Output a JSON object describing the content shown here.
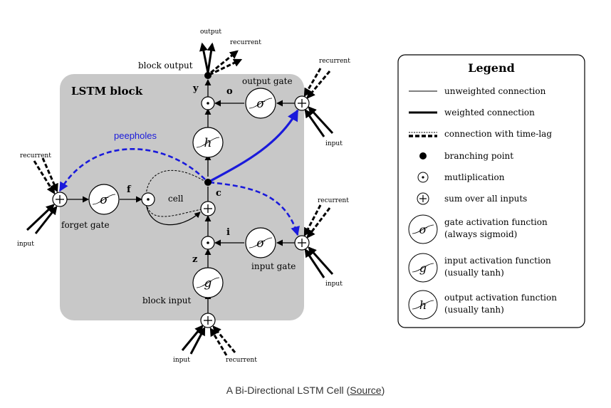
{
  "diagram": {
    "block_title": "LSTM block",
    "labels": {
      "block_output": "block output",
      "output_top": "output",
      "recurrent_top": "recurrent",
      "recurrent_output_gate": "recurrent",
      "input_output_gate": "input",
      "output_gate": "output gate",
      "y": "y",
      "o": "o",
      "peepholes": "peepholes",
      "recurrent_forget": "recurrent",
      "input_forget": "input",
      "f": "f",
      "cell": "cell",
      "c": "c",
      "forget_gate": "forget gate",
      "recurrent_input_gate": "recurrent",
      "input_input_gate": "input",
      "i": "i",
      "z": "z",
      "input_gate": "input gate",
      "block_input": "block input",
      "input_bottom": "input",
      "recurrent_bottom": "recurrent"
    },
    "symbols": {
      "sigma": "σ",
      "g": "g",
      "h": "h",
      "plus": "+",
      "dot": "⊙"
    }
  },
  "legend": {
    "title": "Legend",
    "items": [
      {
        "label": "unweighted connection"
      },
      {
        "label": "weighted connection"
      },
      {
        "label": "connection with time-lag"
      },
      {
        "label": "branching point"
      },
      {
        "label": "mutliplication"
      },
      {
        "label": "sum over all inputs"
      },
      {
        "label": "gate activation function",
        "label2": "(always sigmoid)"
      },
      {
        "label": "input activation function",
        "label2": "(usually tanh)"
      },
      {
        "label": "output activation function",
        "label2": "(usually tanh)"
      }
    ]
  },
  "caption": {
    "text": "A Bi-Directional LSTM Cell (",
    "link": "Source",
    "close": ")"
  },
  "colors": {
    "block_fill": "#c8c8c8",
    "peephole": "#1a1adb",
    "line": "#000000"
  }
}
